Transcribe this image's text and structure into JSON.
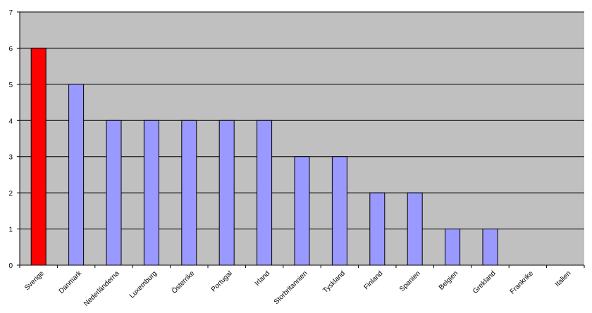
{
  "chart_data": {
    "type": "bar",
    "categories": [
      "Sverige",
      "Danmark",
      "Nederländerna",
      "Luxemburg",
      "Österrike",
      "Portugal",
      "Irland",
      "Storbritannien",
      "Tyskland",
      "Finland",
      "Spanien",
      "Belgien",
      "Grekland",
      "Frankrike",
      "Italien"
    ],
    "values": [
      6,
      5,
      4,
      4,
      4,
      4,
      4,
      3,
      3,
      2,
      2,
      1,
      1,
      0,
      0
    ],
    "highlight_index": 0,
    "ylim": [
      0,
      7
    ],
    "yticks": [
      "0",
      "1",
      "2",
      "3",
      "4",
      "5",
      "6",
      "7"
    ],
    "grid": true,
    "title": "",
    "xlabel": "",
    "ylabel": "",
    "colors": {
      "plot_background": "#c0c0c0",
      "bar": "#9999ff",
      "highlight_bar": "#ff0000",
      "bar_outline": "#000000",
      "gridline": "#000000"
    }
  }
}
